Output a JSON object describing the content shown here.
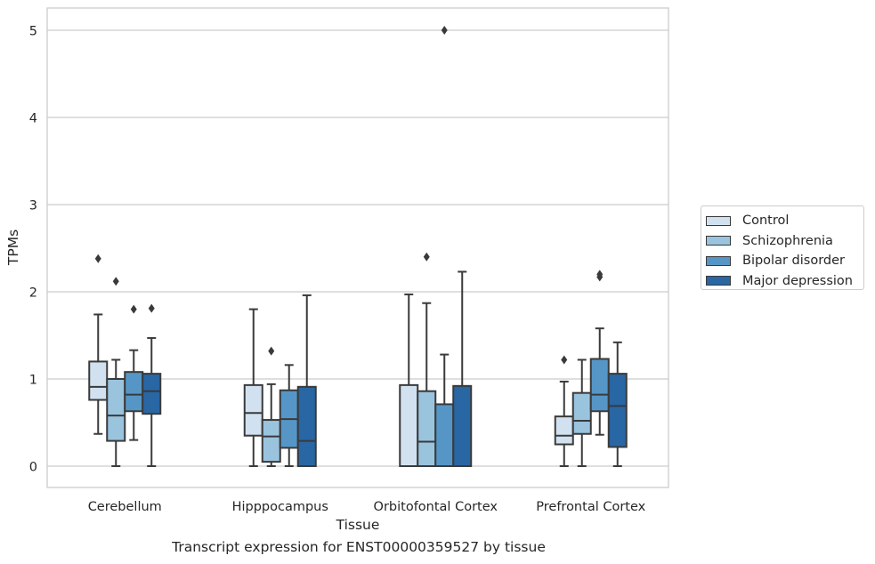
{
  "caption": "Transcript expression for ENST00000359527 by tissue",
  "chart_data": {
    "type": "boxplot",
    "xlabel": "Tissue",
    "ylabel": "TPMs",
    "ylim": [
      -0.25,
      5.27
    ],
    "yticks": [
      0,
      1,
      2,
      3,
      4,
      5
    ],
    "grid": "horizontal",
    "legend_placement": "right-outside",
    "categories": [
      "Cerebellum",
      "Hipppocampus",
      "Orbitofontal Cortex",
      "Prefrontal Cortex"
    ],
    "series": [
      {
        "name": "Control",
        "color": "#d1e1f0",
        "boxes": [
          {
            "whislo": 0.37,
            "q1": 0.76,
            "med": 0.91,
            "q3": 1.2,
            "whishi": 1.74,
            "fliers": [
              2.38
            ]
          },
          {
            "whislo": 0.0,
            "q1": 0.35,
            "med": 0.61,
            "q3": 0.93,
            "whishi": 1.8,
            "fliers": []
          },
          {
            "whislo": 0.0,
            "q1": 0.0,
            "med": 0.0,
            "q3": 0.93,
            "whishi": 1.97,
            "fliers": []
          },
          {
            "whislo": 0.0,
            "q1": 0.25,
            "med": 0.35,
            "q3": 0.57,
            "whishi": 0.97,
            "fliers": [
              1.22
            ]
          }
        ]
      },
      {
        "name": "Schizophrenia",
        "color": "#9ac3de",
        "boxes": [
          {
            "whislo": 0.0,
            "q1": 0.29,
            "med": 0.58,
            "q3": 1.0,
            "whishi": 1.22,
            "fliers": [
              2.12
            ]
          },
          {
            "whislo": 0.0,
            "q1": 0.05,
            "med": 0.34,
            "q3": 0.53,
            "whishi": 0.94,
            "fliers": [
              1.32
            ]
          },
          {
            "whislo": 0.0,
            "q1": 0.0,
            "med": 0.28,
            "q3": 0.86,
            "whishi": 1.87,
            "fliers": [
              2.4
            ]
          },
          {
            "whislo": 0.0,
            "q1": 0.37,
            "med": 0.52,
            "q3": 0.84,
            "whishi": 1.22,
            "fliers": []
          }
        ]
      },
      {
        "name": "Bipolar disorder",
        "color": "#5596c7",
        "boxes": [
          {
            "whislo": 0.3,
            "q1": 0.63,
            "med": 0.82,
            "q3": 1.08,
            "whishi": 1.33,
            "fliers": [
              1.8
            ]
          },
          {
            "whislo": 0.0,
            "q1": 0.21,
            "med": 0.54,
            "q3": 0.87,
            "whishi": 1.16,
            "fliers": []
          },
          {
            "whislo": 0.0,
            "q1": 0.0,
            "med": 0.0,
            "q3": 0.71,
            "whishi": 1.28,
            "fliers": [
              5.0
            ]
          },
          {
            "whislo": 0.36,
            "q1": 0.63,
            "med": 0.82,
            "q3": 1.23,
            "whishi": 1.58,
            "fliers": [
              2.17,
              2.2
            ]
          }
        ]
      },
      {
        "name": "Major depression",
        "color": "#2866a4",
        "boxes": [
          {
            "whislo": 0.0,
            "q1": 0.6,
            "med": 0.86,
            "q3": 1.06,
            "whishi": 1.47,
            "fliers": [
              1.81
            ]
          },
          {
            "whislo": 0.0,
            "q1": 0.0,
            "med": 0.29,
            "q3": 0.91,
            "whishi": 1.96,
            "fliers": []
          },
          {
            "whislo": 0.0,
            "q1": 0.0,
            "med": 0.0,
            "q3": 0.92,
            "whishi": 2.23,
            "fliers": []
          },
          {
            "whislo": 0.0,
            "q1": 0.22,
            "med": 0.69,
            "q3": 1.06,
            "whishi": 1.42,
            "fliers": []
          }
        ]
      }
    ]
  }
}
